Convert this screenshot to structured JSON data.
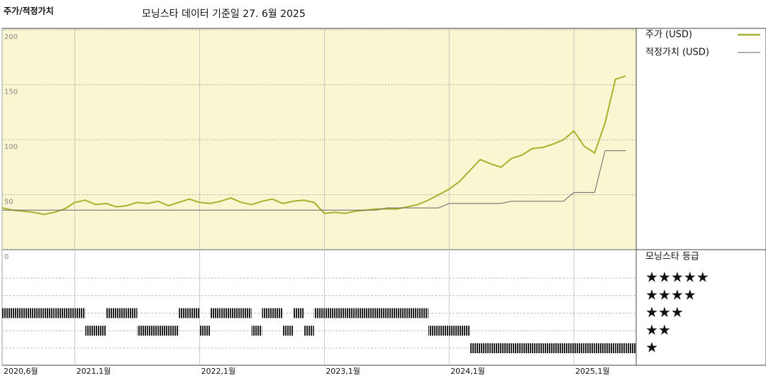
{
  "chart_data": {
    "type": "line",
    "title": "주가/적정가치",
    "subtitle": "모닝스타 데이터 기준일 27. 6월 2025",
    "x": [
      "2020-06",
      "2020-07",
      "2020-08",
      "2020-09",
      "2020-10",
      "2020-11",
      "2020-12",
      "2021-01",
      "2021-02",
      "2021-03",
      "2021-04",
      "2021-05",
      "2021-06",
      "2021-07",
      "2021-08",
      "2021-09",
      "2021-10",
      "2021-11",
      "2021-12",
      "2022-01",
      "2022-02",
      "2022-03",
      "2022-04",
      "2022-05",
      "2022-06",
      "2022-07",
      "2022-08",
      "2022-09",
      "2022-10",
      "2022-11",
      "2022-12",
      "2023-01",
      "2023-02",
      "2023-03",
      "2023-04",
      "2023-05",
      "2023-06",
      "2023-07",
      "2023-08",
      "2023-09",
      "2023-10",
      "2023-11",
      "2023-12",
      "2024-01",
      "2024-02",
      "2024-03",
      "2024-04",
      "2024-05",
      "2024-06",
      "2024-07",
      "2024-08",
      "2024-09",
      "2024-10",
      "2024-11",
      "2024-12",
      "2025-01",
      "2025-02",
      "2025-03",
      "2025-04",
      "2025-05",
      "2025-06"
    ],
    "series": [
      {
        "name": "주가 (USD)",
        "color": "#a8b22c",
        "values": [
          38,
          36,
          35,
          34,
          32,
          34,
          37,
          43,
          45,
          41,
          42,
          39,
          40,
          43,
          42,
          44,
          40,
          43,
          46,
          43,
          42,
          44,
          47,
          43,
          41,
          44,
          46,
          42,
          44,
          45,
          43,
          33,
          34,
          33,
          35,
          36,
          37,
          37,
          37,
          39,
          41,
          45,
          50,
          55,
          62,
          72,
          82,
          78,
          75,
          83,
          86,
          92,
          93,
          96,
          100,
          108,
          94,
          88,
          115,
          155,
          158
        ]
      },
      {
        "name": "적정가치 (USD)",
        "color": "#666666",
        "values": [
          36,
          36,
          36,
          36,
          36,
          36,
          36,
          36,
          36,
          36,
          36,
          36,
          36,
          36,
          36,
          36,
          36,
          36,
          36,
          36,
          36,
          36,
          36,
          36,
          36,
          36,
          36,
          36,
          36,
          36,
          36,
          36,
          36,
          36,
          36,
          36,
          36,
          38,
          38,
          38,
          38,
          38,
          38,
          42,
          42,
          42,
          42,
          42,
          42,
          44,
          44,
          44,
          44,
          44,
          44,
          52,
          52,
          52,
          90,
          90,
          90
        ]
      }
    ],
    "xlim": [
      "2020-06",
      "2025-07"
    ],
    "xticks": [
      {
        "value": "2020-06",
        "label": "2020,6월"
      },
      {
        "value": "2021-01",
        "label": "2021,1월"
      },
      {
        "value": "2022-01",
        "label": "2022,1월"
      },
      {
        "value": "2023-01",
        "label": "2023,1월"
      },
      {
        "value": "2024-01",
        "label": "2024,1월"
      },
      {
        "value": "2025-01",
        "label": "2025,1월"
      }
    ],
    "ylim": [
      0,
      200
    ],
    "yticks": [
      0,
      50,
      100,
      150,
      200
    ],
    "rating": {
      "title": "모닝스타 등급",
      "levels": [
        5,
        4,
        3,
        2,
        1
      ],
      "level_labels": [
        "★★★★★",
        "★★★★",
        "★★★",
        "★★",
        "★"
      ],
      "values": [
        3,
        3,
        3,
        3,
        3,
        3,
        3,
        3,
        2,
        2,
        3,
        3,
        3,
        2,
        2,
        2,
        2,
        3,
        3,
        2,
        3,
        3,
        3,
        3,
        2,
        3,
        3,
        2,
        3,
        2,
        3,
        3,
        3,
        3,
        3,
        3,
        3,
        3,
        3,
        3,
        3,
        2,
        2,
        2,
        2,
        1,
        1,
        1,
        1,
        1,
        1,
        1,
        1,
        1,
        1,
        1,
        1,
        1,
        1,
        1,
        1
      ]
    }
  }
}
